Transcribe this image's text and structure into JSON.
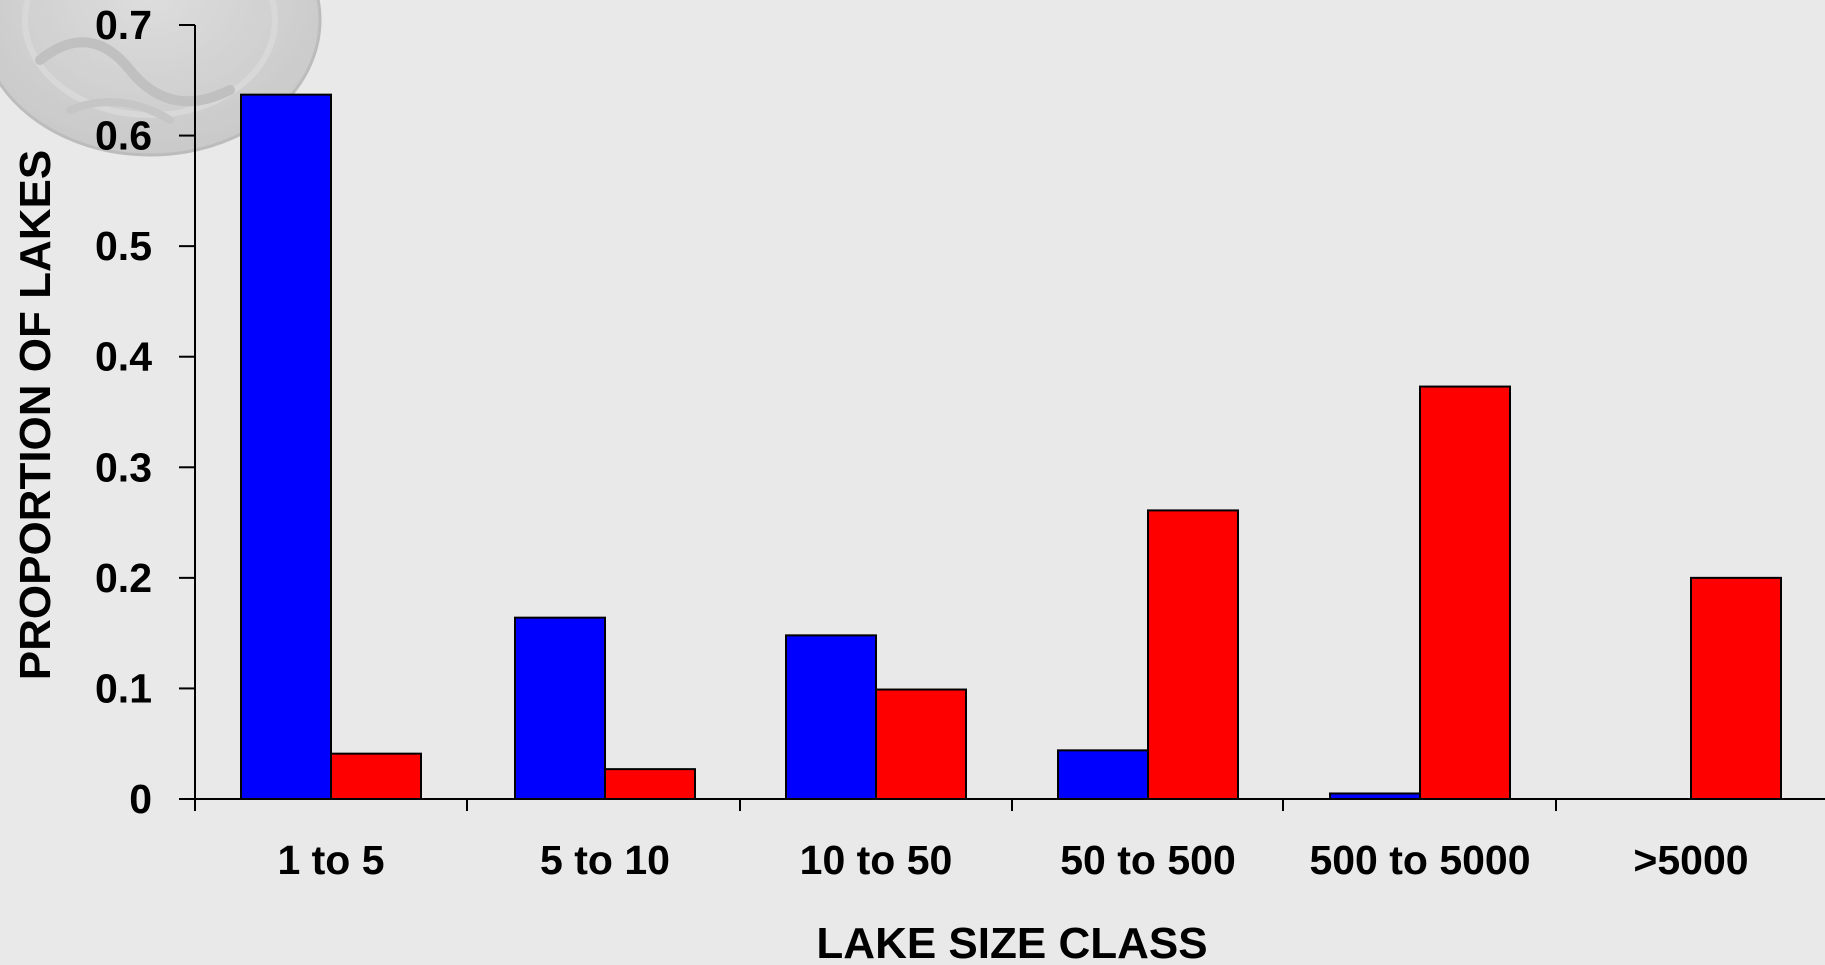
{
  "chart_data": {
    "type": "bar",
    "categories": [
      "1 to 5",
      "5 to 10",
      "10 to 50",
      "50 to 500",
      "500 to 5000",
      ">5000"
    ],
    "series": [
      {
        "color": "#0000ff",
        "values": [
          0.637,
          0.164,
          0.148,
          0.044,
          0.005,
          0.0
        ]
      },
      {
        "color": "#ff0000",
        "values": [
          0.041,
          0.027,
          0.099,
          0.261,
          0.373,
          0.2
        ]
      }
    ],
    "title": "",
    "xlabel": "LAKE SIZE CLASS",
    "ylabel": "PROPORTION OF LAKES",
    "ylim": [
      0,
      0.7
    ],
    "yticks": [
      "0",
      "0.1",
      "0.2",
      "0.3",
      "0.4",
      "0.5",
      "0.6",
      "0.7"
    ],
    "grid": false,
    "legend": false
  }
}
